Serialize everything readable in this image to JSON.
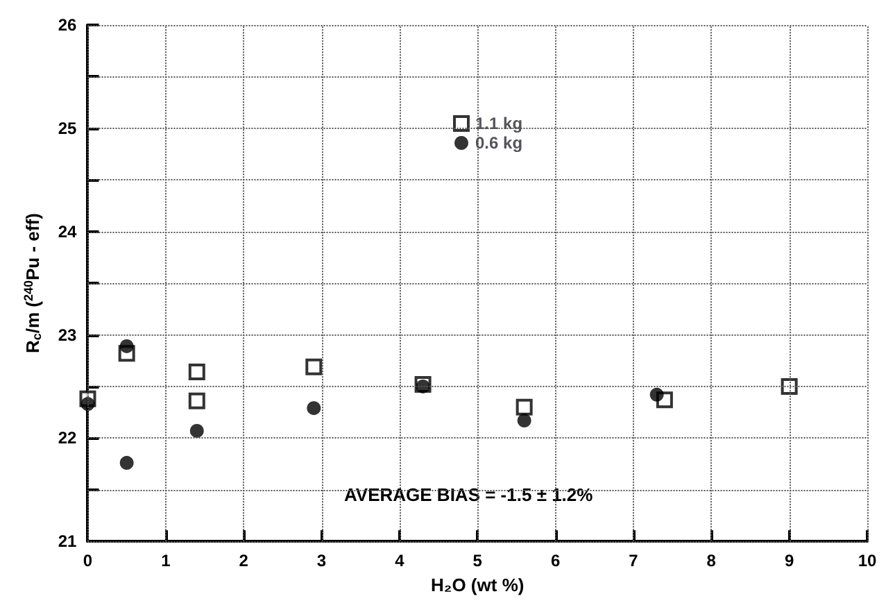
{
  "chart_data": {
    "type": "scatter",
    "xlabel": "H₂O (wt %)",
    "ylabel": "R$_{c}$/m ($^{240}$Pu - eff)",
    "series": [
      {
        "name": "1.1 kg",
        "color": "#000000",
        "marker": "square",
        "x": [
          0,
          0.5,
          1.4,
          1.4,
          2.9,
          4.3,
          5.6,
          7.4,
          9.0
        ],
        "values": [
          22.38,
          22.82,
          22.64,
          22.36,
          22.69,
          22.52,
          22.3,
          22.37,
          22.5
        ]
      },
      {
        "name": "0.6 kg",
        "color": "#000000",
        "marker": "circle",
        "x": [
          0,
          0.5,
          0.5,
          1.4,
          2.9,
          4.3,
          5.6,
          7.3
        ],
        "values": [
          22.33,
          22.89,
          21.76,
          22.07,
          22.29,
          22.5,
          22.17,
          22.42
        ]
      }
    ],
    "xlim": [
      0,
      10
    ],
    "xticks": [
      0,
      1,
      2,
      3,
      4,
      5,
      6,
      7,
      8,
      9,
      10
    ],
    "ylim": [
      21,
      26
    ],
    "yticks": [
      21,
      {
        "value": 21.5,
        "label": null
      },
      22,
      {
        "value": 22.5,
        "label": null
      },
      23,
      {
        "value": 23.5,
        "label": null
      },
      24,
      {
        "value": 24.5,
        "label": null
      },
      25,
      {
        "value": 25.5,
        "label": null
      },
      26
    ],
    "grid": true,
    "legend": "top",
    "annotations": [
      "AVERAGE BIAS = -1.5 ± 1.2%"
    ]
  }
}
